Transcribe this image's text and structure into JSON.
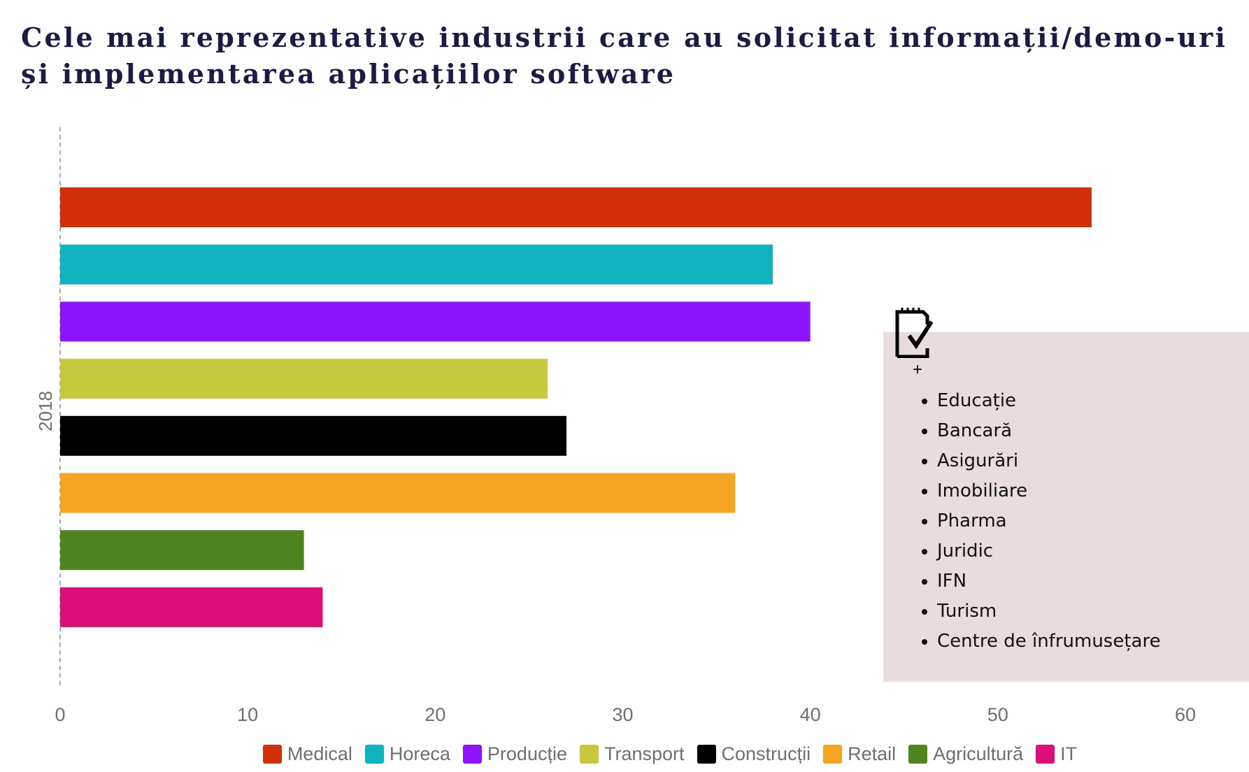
{
  "title": {
    "line1": "Cele mai reprezentative industrii care au solicitat informații/demo-uri",
    "line2": "și implementarea aplicațiilor software"
  },
  "chart_data": {
    "type": "bar",
    "orientation": "horizontal",
    "ylabel": "2018",
    "xlabel": "",
    "xlim": [
      0,
      60
    ],
    "xticks": [
      0,
      10,
      20,
      30,
      40,
      50,
      60
    ],
    "grid": false,
    "legend_position": "bottom",
    "series": [
      {
        "name": "Medical",
        "value": 55,
        "color": "#d2300a"
      },
      {
        "name": "Horeca",
        "value": 38,
        "color": "#10b2bd"
      },
      {
        "name": "Producție",
        "value": 40,
        "color": "#8e15fb"
      },
      {
        "name": "Transport",
        "value": 26,
        "color": "#c6c93b"
      },
      {
        "name": "Construcții",
        "value": 27,
        "color": "#000000"
      },
      {
        "name": "Retail",
        "value": 36,
        "color": "#f3a523"
      },
      {
        "name": "Agricultură",
        "value": 13,
        "color": "#4f8520"
      },
      {
        "name": "IT",
        "value": 14,
        "color": "#dc0f79"
      }
    ]
  },
  "note": {
    "icon": "checklist-notepad-icon",
    "plus": "+",
    "items": [
      "Educație",
      "Bancară",
      "Asigurări",
      "Imobiliare",
      "Pharma",
      "Juridic",
      "IFN",
      "Turism",
      "Centre de înfrumusețare"
    ]
  }
}
